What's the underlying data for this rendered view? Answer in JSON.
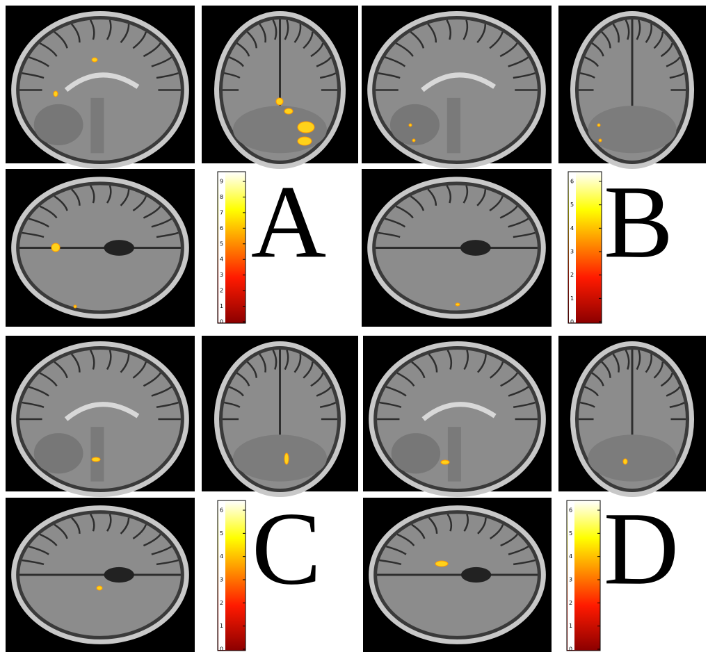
{
  "panels": [
    {
      "label": "A",
      "colorbar_ticks": [
        0,
        1,
        2,
        3,
        4,
        5,
        6,
        7,
        8,
        9
      ]
    },
    {
      "label": "B",
      "colorbar_ticks": [
        0,
        1,
        2,
        3,
        4,
        5,
        6
      ]
    },
    {
      "label": "C",
      "colorbar_ticks": [
        0,
        1,
        2,
        3,
        4,
        5,
        6
      ]
    },
    {
      "label": "D",
      "colorbar_ticks": [
        0,
        1,
        2,
        3,
        4,
        5,
        6
      ]
    }
  ]
}
